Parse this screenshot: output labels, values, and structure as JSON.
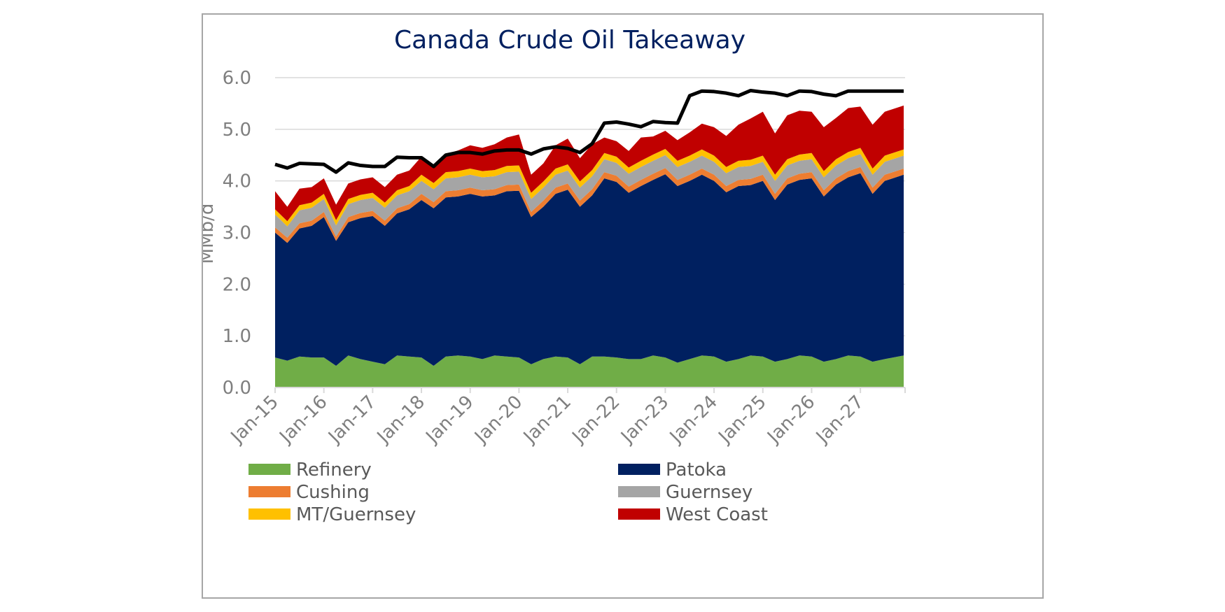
{
  "chart_data": {
    "type": "area",
    "title": "Canada Crude Oil Takeaway",
    "xlabel": "",
    "ylabel": "MMb/d",
    "ylim": [
      0,
      6
    ],
    "yticks": [
      "0.0",
      "1.0",
      "2.0",
      "3.0",
      "4.0",
      "5.0",
      "6.0"
    ],
    "xlim": [
      "2015-01",
      "2027-12"
    ],
    "xticks": [
      "Jan-15",
      "Jan-16",
      "Jan-17",
      "Jan-18",
      "Jan-19",
      "Jan-20",
      "Jan-21",
      "Jan-22",
      "Jan-23",
      "Jan-24",
      "Jan-25",
      "Jan-26",
      "Jan-27"
    ],
    "x_interval": "quarterly",
    "x": [
      "2015-01",
      "2015-04",
      "2015-07",
      "2015-10",
      "2016-01",
      "2016-04",
      "2016-07",
      "2016-10",
      "2017-01",
      "2017-04",
      "2017-07",
      "2017-10",
      "2018-01",
      "2018-04",
      "2018-07",
      "2018-10",
      "2019-01",
      "2019-04",
      "2019-07",
      "2019-10",
      "2020-01",
      "2020-04",
      "2020-07",
      "2020-10",
      "2021-01",
      "2021-04",
      "2021-07",
      "2021-10",
      "2022-01",
      "2022-04",
      "2022-07",
      "2022-10",
      "2023-01",
      "2023-04",
      "2023-07",
      "2023-10",
      "2024-01",
      "2024-04",
      "2024-07",
      "2024-10",
      "2025-01",
      "2025-04",
      "2025-07",
      "2025-10",
      "2026-01",
      "2026-04",
      "2026-07",
      "2026-10",
      "2027-01",
      "2027-04",
      "2027-07",
      "2027-10"
    ],
    "stacked": true,
    "grid": "horizontal",
    "legend_position": "bottom",
    "series": [
      {
        "name": "Refinery",
        "color": "#70ad47",
        "values": [
          0.58,
          0.52,
          0.6,
          0.58,
          0.58,
          0.42,
          0.62,
          0.55,
          0.5,
          0.45,
          0.62,
          0.6,
          0.58,
          0.42,
          0.6,
          0.62,
          0.6,
          0.55,
          0.62,
          0.6,
          0.58,
          0.45,
          0.55,
          0.6,
          0.58,
          0.45,
          0.6,
          0.6,
          0.58,
          0.55,
          0.55,
          0.62,
          0.58,
          0.48,
          0.55,
          0.62,
          0.6,
          0.5,
          0.55,
          0.62,
          0.6,
          0.5,
          0.55,
          0.62,
          0.6,
          0.5,
          0.55,
          0.62,
          0.6,
          0.5,
          0.55,
          0.62
        ]
      },
      {
        "name": "Patoka",
        "color": "#002060",
        "values": [
          2.42,
          2.28,
          2.48,
          2.55,
          2.72,
          2.42,
          2.58,
          2.73,
          2.82,
          2.68,
          2.75,
          2.85,
          3.05,
          3.05,
          3.08,
          3.08,
          3.15,
          3.15,
          3.1,
          3.2,
          3.23,
          2.85,
          2.95,
          3.15,
          3.25,
          3.05,
          3.12,
          3.45,
          3.4,
          3.22,
          3.35,
          3.4,
          3.55,
          3.42,
          3.45,
          3.5,
          3.4,
          3.28,
          3.35,
          3.3,
          3.4,
          3.13,
          3.38,
          3.4,
          3.45,
          3.2,
          3.38,
          3.45,
          3.55,
          3.25,
          3.45,
          3.5
        ]
      },
      {
        "name": "Cushing",
        "color": "#ed7d31",
        "values": [
          0.1,
          0.1,
          0.1,
          0.1,
          0.1,
          0.08,
          0.1,
          0.1,
          0.1,
          0.1,
          0.1,
          0.1,
          0.12,
          0.12,
          0.12,
          0.12,
          0.12,
          0.12,
          0.12,
          0.12,
          0.12,
          0.1,
          0.12,
          0.12,
          0.12,
          0.12,
          0.12,
          0.12,
          0.12,
          0.12,
          0.12,
          0.12,
          0.12,
          0.12,
          0.12,
          0.12,
          0.12,
          0.12,
          0.12,
          0.12,
          0.12,
          0.12,
          0.12,
          0.12,
          0.12,
          0.12,
          0.12,
          0.12,
          0.12,
          0.12,
          0.12,
          0.12
        ]
      },
      {
        "name": "Guernsey",
        "color": "#a5a5a5",
        "values": [
          0.25,
          0.22,
          0.25,
          0.25,
          0.25,
          0.22,
          0.25,
          0.25,
          0.25,
          0.25,
          0.25,
          0.25,
          0.25,
          0.25,
          0.25,
          0.25,
          0.25,
          0.25,
          0.25,
          0.25,
          0.25,
          0.25,
          0.25,
          0.25,
          0.25,
          0.25,
          0.25,
          0.25,
          0.25,
          0.25,
          0.25,
          0.25,
          0.25,
          0.25,
          0.25,
          0.25,
          0.25,
          0.25,
          0.25,
          0.25,
          0.25,
          0.25,
          0.25,
          0.25,
          0.25,
          0.25,
          0.25,
          0.25,
          0.25,
          0.25,
          0.25,
          0.25
        ]
      },
      {
        "name": "MT/Guernsey",
        "color": "#ffc000",
        "values": [
          0.1,
          0.1,
          0.1,
          0.1,
          0.1,
          0.1,
          0.1,
          0.1,
          0.1,
          0.1,
          0.1,
          0.1,
          0.12,
          0.12,
          0.12,
          0.12,
          0.12,
          0.12,
          0.12,
          0.12,
          0.12,
          0.12,
          0.12,
          0.12,
          0.12,
          0.12,
          0.12,
          0.12,
          0.12,
          0.12,
          0.12,
          0.12,
          0.12,
          0.12,
          0.12,
          0.12,
          0.12,
          0.12,
          0.12,
          0.12,
          0.12,
          0.12,
          0.12,
          0.12,
          0.12,
          0.12,
          0.12,
          0.12,
          0.12,
          0.12,
          0.12,
          0.12
        ]
      },
      {
        "name": "West Coast",
        "color": "#c00000",
        "values": [
          0.35,
          0.28,
          0.32,
          0.3,
          0.3,
          0.3,
          0.3,
          0.3,
          0.3,
          0.3,
          0.3,
          0.3,
          0.35,
          0.35,
          0.35,
          0.4,
          0.45,
          0.45,
          0.5,
          0.55,
          0.6,
          0.35,
          0.35,
          0.45,
          0.5,
          0.45,
          0.5,
          0.3,
          0.3,
          0.32,
          0.45,
          0.35,
          0.35,
          0.4,
          0.45,
          0.5,
          0.55,
          0.6,
          0.7,
          0.8,
          0.85,
          0.8,
          0.85,
          0.85,
          0.8,
          0.85,
          0.8,
          0.85,
          0.8,
          0.85,
          0.85,
          0.85
        ]
      }
    ],
    "line_series": {
      "name": "",
      "color": "#000000",
      "values": [
        4.32,
        4.25,
        4.34,
        4.33,
        4.32,
        4.17,
        4.35,
        4.3,
        4.28,
        4.28,
        4.46,
        4.45,
        4.45,
        4.28,
        4.5,
        4.55,
        4.55,
        4.52,
        4.58,
        4.6,
        4.6,
        4.52,
        4.62,
        4.66,
        4.63,
        4.55,
        4.72,
        5.12,
        5.14,
        5.1,
        5.05,
        5.15,
        5.13,
        5.12,
        5.65,
        5.74,
        5.73,
        5.7,
        5.65,
        5.75,
        5.72,
        5.7,
        5.65,
        5.74,
        5.73,
        5.68,
        5.65,
        5.74,
        5.74,
        5.74,
        5.74,
        5.74
      ]
    }
  }
}
